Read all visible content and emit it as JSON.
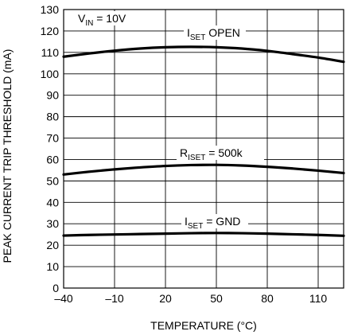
{
  "chart_data": {
    "type": "line",
    "xlabel": "TEMPERATURE (°C)",
    "ylabel": "PEAK CURRENT TRIP THRESHOLD (mA)",
    "xlim": [
      -40,
      125
    ],
    "ylim": [
      0,
      130
    ],
    "x_ticks": [
      -40,
      -10,
      20,
      50,
      80,
      110
    ],
    "y_ticks": [
      0,
      10,
      20,
      30,
      40,
      50,
      60,
      70,
      80,
      90,
      100,
      110,
      120,
      130
    ],
    "grid": true,
    "series": [
      {
        "name": "ISET OPEN",
        "x": [
          -40,
          -25,
          -10,
          5,
          20,
          35,
          50,
          65,
          80,
          95,
          110,
          125
        ],
        "y": [
          108,
          109.5,
          110.8,
          111.8,
          112.4,
          112.6,
          112.4,
          111.8,
          110.7,
          109.2,
          107.6,
          105.6
        ]
      },
      {
        "name": "RISET = 500k",
        "x": [
          -40,
          -25,
          -10,
          5,
          20,
          35,
          50,
          65,
          80,
          95,
          110,
          125
        ],
        "y": [
          53,
          54.3,
          55.4,
          56.3,
          57,
          57.4,
          57.5,
          57.2,
          56.6,
          55.8,
          54.8,
          53.7
        ]
      },
      {
        "name": "ISET = GND",
        "x": [
          -40,
          -25,
          -10,
          5,
          20,
          35,
          50,
          65,
          80,
          95,
          110,
          125
        ],
        "y": [
          24.5,
          24.8,
          25,
          25.2,
          25.4,
          25.6,
          25.7,
          25.6,
          25.4,
          25.1,
          24.8,
          24.4
        ]
      }
    ],
    "annotations": [
      {
        "id": "vin",
        "main": "V",
        "sub": "IN",
        "rest": " = 10V"
      },
      {
        "id": "iset-open",
        "main": "I",
        "sub": "SET",
        "rest": " OPEN"
      },
      {
        "id": "riset",
        "main": "R",
        "sub": "ISET",
        "rest": " = 500k"
      },
      {
        "id": "iset-gnd",
        "main": "I",
        "sub": "SET",
        "rest": " = GND"
      }
    ]
  },
  "colors": {
    "line": "#000000",
    "grid": "#000000",
    "background": "#ffffff"
  }
}
